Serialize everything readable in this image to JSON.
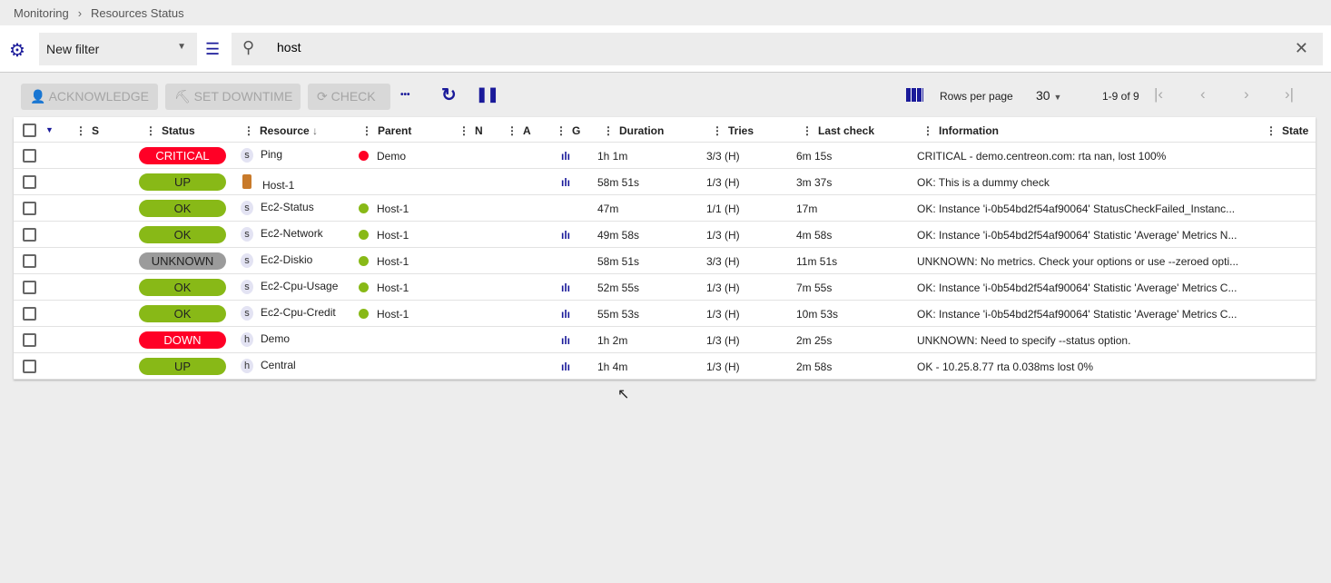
{
  "breadcrumb": [
    "Monitoring",
    "Resources Status"
  ],
  "filter": {
    "selected": "New filter",
    "search_value": "host"
  },
  "actions": {
    "acknowledge": "ACKNOWLEDGE",
    "downtime": "SET DOWNTIME",
    "check": "CHECK",
    "more": "•••"
  },
  "pagination": {
    "rows_per_page_label": "Rows per page",
    "rows_per_page": "30",
    "range": "1-9 of 9"
  },
  "columns": [
    "S",
    "Status",
    "Resource",
    "Parent",
    "N",
    "A",
    "G",
    "Duration",
    "Tries",
    "Last check",
    "Information",
    "State"
  ],
  "colors": {
    "critical": "#ff0026",
    "ok": "#88b917",
    "unknown": "#9b9b9b",
    "accent": "#1a1a9a"
  },
  "rows": [
    {
      "status": "CRITICAL",
      "type": "s",
      "resource": "Ping",
      "parent": "Demo",
      "parent_color": "#ff0026",
      "graph": true,
      "duration": "1h 1m",
      "tries": "3/3 (H)",
      "last_check": "6m 15s",
      "info": "CRITICAL - demo.centreon.com: rta nan, lost 100%"
    },
    {
      "status": "UP",
      "type": "aws",
      "resource": "Host-1",
      "parent": "",
      "parent_color": "",
      "graph": true,
      "duration": "58m 51s",
      "tries": "1/3 (H)",
      "last_check": "3m 37s",
      "info": "OK: This is a dummy check"
    },
    {
      "status": "OK",
      "type": "s",
      "resource": "Ec2-Status",
      "parent": "Host-1",
      "parent_color": "#88b917",
      "graph": false,
      "duration": "47m",
      "tries": "1/1 (H)",
      "last_check": "17m",
      "info": "OK: Instance 'i-0b54bd2f54af90064' StatusCheckFailed_Instanc..."
    },
    {
      "status": "OK",
      "type": "s",
      "resource": "Ec2-Network",
      "parent": "Host-1",
      "parent_color": "#88b917",
      "graph": true,
      "duration": "49m 58s",
      "tries": "1/3 (H)",
      "last_check": "4m 58s",
      "info": "OK: Instance 'i-0b54bd2f54af90064' Statistic 'Average' Metrics N..."
    },
    {
      "status": "UNKNOWN",
      "type": "s",
      "resource": "Ec2-Diskio",
      "parent": "Host-1",
      "parent_color": "#88b917",
      "graph": false,
      "duration": "58m 51s",
      "tries": "3/3 (H)",
      "last_check": "11m 51s",
      "info": "UNKNOWN: No metrics. Check your options or use --zeroed opti..."
    },
    {
      "status": "OK",
      "type": "s",
      "resource": "Ec2-Cpu-Usage",
      "parent": "Host-1",
      "parent_color": "#88b917",
      "graph": true,
      "duration": "52m 55s",
      "tries": "1/3 (H)",
      "last_check": "7m 55s",
      "info": "OK: Instance 'i-0b54bd2f54af90064' Statistic 'Average' Metrics C..."
    },
    {
      "status": "OK",
      "type": "s",
      "resource": "Ec2-Cpu-Credit",
      "parent": "Host-1",
      "parent_color": "#88b917",
      "graph": true,
      "duration": "55m 53s",
      "tries": "1/3 (H)",
      "last_check": "10m 53s",
      "info": "OK: Instance 'i-0b54bd2f54af90064' Statistic 'Average' Metrics C..."
    },
    {
      "status": "DOWN",
      "type": "h",
      "resource": "Demo",
      "parent": "",
      "parent_color": "",
      "graph": true,
      "duration": "1h 2m",
      "tries": "1/3 (H)",
      "last_check": "2m 25s",
      "info": "UNKNOWN: Need to specify --status option."
    },
    {
      "status": "UP",
      "type": "h",
      "resource": "Central",
      "parent": "",
      "parent_color": "",
      "graph": true,
      "duration": "1h 4m",
      "tries": "1/3 (H)",
      "last_check": "2m 58s",
      "info": "OK - 10.25.8.77 rta 0.038ms lost 0%"
    }
  ]
}
